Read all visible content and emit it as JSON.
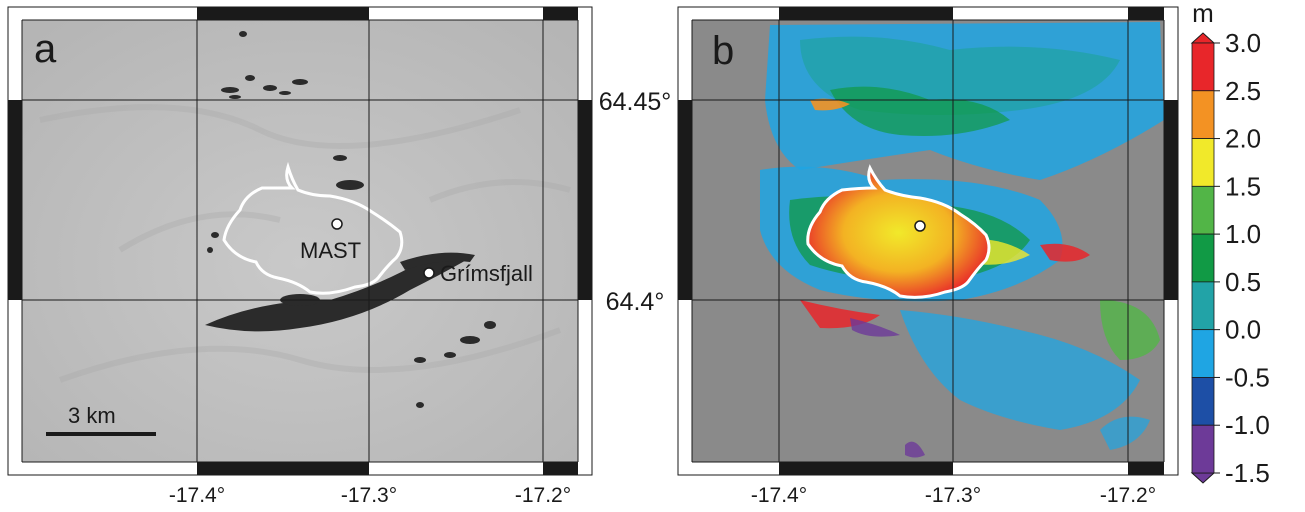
{
  "panels": {
    "a": {
      "label": "a"
    },
    "b": {
      "label": "b"
    }
  },
  "axes": {
    "lon_ticks": [
      "-17.4°",
      "-17.3°",
      "-17.2°"
    ],
    "lat_ticks": [
      "64.45°",
      "64.4°"
    ]
  },
  "places": {
    "mast": "MAST",
    "grimsfjall": "Grímsfjall"
  },
  "scale_bar": {
    "label": "3 km"
  },
  "colorbar": {
    "unit": "m",
    "ticks": [
      "3.0",
      "2.5",
      "2.0",
      "1.5",
      "1.0",
      "0.5",
      "0.0",
      "-0.5",
      "-1.0",
      "-1.5"
    ],
    "colors": [
      "#e8262a",
      "#f39223",
      "#f1e92a",
      "#52b547",
      "#119a45",
      "#22a3a7",
      "#1fa5e3",
      "#1d4fa6",
      "#6d3a98"
    ],
    "range": [
      -1.5,
      3.0
    ]
  },
  "colors": {
    "nodata_gray": "#8a8a8a",
    "outline": "#ffffff",
    "frame": "#1a1a1a"
  }
}
